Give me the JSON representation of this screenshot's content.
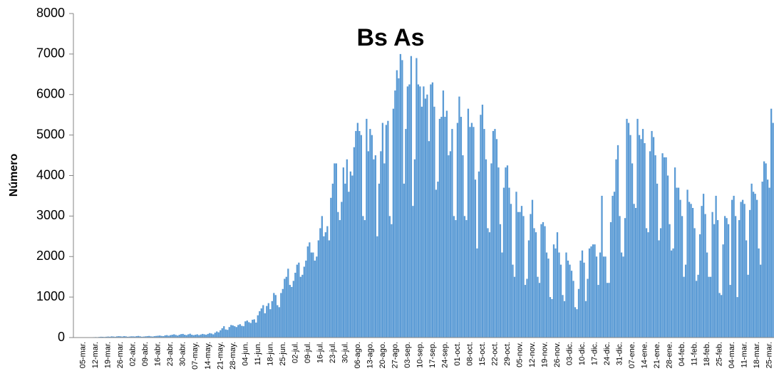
{
  "chart_data": {
    "type": "bar",
    "title": "Bs As",
    "y_label": "Número",
    "color": "#5b9bd5",
    "grid": false,
    "ylim": [
      0,
      8000
    ],
    "yticks": [
      0,
      1000,
      2000,
      3000,
      4000,
      5000,
      6000,
      7000,
      8000
    ],
    "categories": [
      null,
      null,
      null,
      null,
      null,
      "05-mar.",
      null,
      null,
      null,
      null,
      null,
      null,
      "12-mar.",
      null,
      null,
      null,
      null,
      null,
      null,
      "19-mar.",
      null,
      null,
      null,
      null,
      null,
      null,
      "26-mar.",
      null,
      null,
      null,
      null,
      null,
      null,
      "02-abr.",
      null,
      null,
      null,
      null,
      null,
      null,
      "09-abr.",
      null,
      null,
      null,
      null,
      null,
      null,
      "16-abr.",
      null,
      null,
      null,
      null,
      null,
      null,
      "23-abr.",
      null,
      null,
      null,
      null,
      null,
      null,
      "30-abr.",
      null,
      null,
      null,
      null,
      null,
      null,
      "07-may.",
      null,
      null,
      null,
      null,
      null,
      null,
      "14-may.",
      null,
      null,
      null,
      null,
      null,
      null,
      "21-may.",
      null,
      null,
      null,
      null,
      null,
      null,
      "28-may.",
      null,
      null,
      null,
      null,
      null,
      null,
      "04-jun.",
      null,
      null,
      null,
      null,
      null,
      null,
      "11-jun.",
      null,
      null,
      null,
      null,
      null,
      null,
      "18-jun.",
      null,
      null,
      null,
      null,
      null,
      null,
      "25-jun.",
      null,
      null,
      null,
      null,
      null,
      null,
      "02-jul.",
      null,
      null,
      null,
      null,
      null,
      null,
      "09-jul.",
      null,
      null,
      null,
      null,
      null,
      null,
      "16-jul.",
      null,
      null,
      null,
      null,
      null,
      null,
      "23-jul.",
      null,
      null,
      null,
      null,
      null,
      null,
      "30-jul.",
      null,
      null,
      null,
      null,
      null,
      null,
      "06-ago.",
      null,
      null,
      null,
      null,
      null,
      null,
      "13-ago.",
      null,
      null,
      null,
      null,
      null,
      null,
      "20-ago.",
      null,
      null,
      null,
      null,
      null,
      null,
      "27-ago.",
      null,
      null,
      null,
      null,
      null,
      null,
      "03-sep.",
      null,
      null,
      null,
      null,
      null,
      null,
      "10-sep.",
      null,
      null,
      null,
      null,
      null,
      null,
      "17-sep.",
      null,
      null,
      null,
      null,
      null,
      null,
      "24-sep.",
      null,
      null,
      null,
      null,
      null,
      null,
      "01-oct.",
      null,
      null,
      null,
      null,
      null,
      null,
      "08-oct.",
      null,
      null,
      null,
      null,
      null,
      null,
      "15-oct.",
      null,
      null,
      null,
      null,
      null,
      null,
      "22-oct.",
      null,
      null,
      null,
      null,
      null,
      null,
      "29-oct.",
      null,
      null,
      null,
      null,
      null,
      null,
      "05-nov.",
      null,
      null,
      null,
      null,
      null,
      null,
      "12-nov.",
      null,
      null,
      null,
      null,
      null,
      null,
      "19-nov.",
      null,
      null,
      null,
      null,
      null,
      null,
      "26-nov.",
      null,
      null,
      null,
      null,
      null,
      null,
      "03-dic.",
      null,
      null,
      null,
      null,
      null,
      null,
      "10-dic.",
      null,
      null,
      null,
      null,
      null,
      null,
      "17-dic.",
      null,
      null,
      null,
      null,
      null,
      null,
      "24-dic.",
      null,
      null,
      null,
      null,
      null,
      null,
      "31-dic.",
      null,
      null,
      null,
      null,
      null,
      null,
      "07-ene.",
      null,
      null,
      null,
      null,
      null,
      null,
      "14-ene.",
      null,
      null,
      null,
      null,
      null,
      null,
      "21-ene.",
      null,
      null,
      null,
      null,
      null,
      null,
      "28-ene.",
      null,
      null,
      null,
      null,
      null,
      null,
      "04-feb.",
      null,
      null,
      null,
      null,
      null,
      null,
      "11-feb.",
      null,
      null,
      null,
      null,
      null,
      null,
      "18-feb.",
      null,
      null,
      null,
      null,
      null,
      null,
      "25-feb.",
      null,
      null,
      null,
      null,
      null,
      null,
      "04-mar.",
      null,
      null,
      null,
      null,
      null,
      null,
      "11-mar.",
      null,
      null,
      null,
      null,
      null,
      null,
      "18-mar.",
      null,
      null,
      null,
      null,
      null,
      null,
      "25-mar.",
      null,
      null
    ],
    "values": [
      0,
      0,
      0,
      0,
      0,
      1,
      0,
      2,
      3,
      5,
      8,
      10,
      12,
      10,
      15,
      20,
      18,
      15,
      20,
      25,
      20,
      30,
      25,
      20,
      30,
      35,
      30,
      25,
      35,
      30,
      20,
      25,
      30,
      30,
      25,
      35,
      40,
      30,
      20,
      25,
      30,
      35,
      40,
      30,
      25,
      35,
      40,
      45,
      50,
      40,
      35,
      55,
      60,
      45,
      60,
      70,
      80,
      65,
      50,
      70,
      85,
      90,
      70,
      60,
      80,
      95,
      70,
      60,
      70,
      80,
      60,
      75,
      90,
      80,
      70,
      90,
      110,
      100,
      80,
      120,
      150,
      130,
      180,
      230,
      280,
      200,
      190,
      260,
      310,
      300,
      280,
      260,
      310,
      330,
      290,
      280,
      400,
      420,
      380,
      360,
      440,
      450,
      370,
      550,
      650,
      720,
      800,
      600,
      780,
      850,
      700,
      900,
      1100,
      1050,
      800,
      750,
      1100,
      1200,
      1450,
      1500,
      1700,
      1300,
      1250,
      1400,
      1600,
      1800,
      1850,
      1500,
      1550,
      1750,
      1900,
      2250,
      2350,
      2100,
      2100,
      1900,
      2000,
      2400,
      2700,
      3000,
      2500,
      2600,
      2750,
      2400,
      3450,
      3800,
      4300,
      4300,
      3100,
      2900,
      3350,
      4200,
      3800,
      4400,
      3600,
      4100,
      4000,
      4700,
      5100,
      5300,
      5100,
      5000,
      3000,
      2900,
      5400,
      4600,
      5150,
      5000,
      4400,
      4500,
      2500,
      3800,
      4600,
      5300,
      4300,
      5250,
      5350,
      3000,
      2800,
      5650,
      6100,
      6600,
      6400,
      7000,
      6850,
      3800,
      5150,
      6200,
      6250,
      6950,
      3250,
      4400,
      6900,
      6250,
      6200,
      5700,
      6200,
      5900,
      6000,
      4850,
      6250,
      6300,
      5700,
      3650,
      3850,
      5400,
      5450,
      6100,
      5450,
      5600,
      4500,
      4600,
      5150,
      3000,
      2900,
      5300,
      5950,
      5450,
      4500,
      3000,
      2900,
      5650,
      5200,
      5300,
      5200,
      3900,
      2200,
      4100,
      5500,
      5750,
      5150,
      4400,
      2700,
      2600,
      4300,
      5100,
      5150,
      4900,
      4200,
      2800,
      2100,
      3700,
      4200,
      4250,
      3700,
      3300,
      1800,
      1500,
      3600,
      3100,
      3100,
      3250,
      3000,
      1300,
      1450,
      2400,
      3050,
      3400,
      2700,
      2600,
      1500,
      1350,
      2800,
      2850,
      2750,
      2100,
      1950,
      1000,
      950,
      2300,
      2200,
      2600,
      2100,
      1800,
      1050,
      900,
      2100,
      1900,
      1800,
      1650,
      1400,
      750,
      700,
      1200,
      1900,
      2150,
      1850,
      900,
      1450,
      2200,
      2250,
      2300,
      2300,
      2000,
      1300,
      2100,
      3500,
      2000,
      2000,
      1350,
      1350,
      2850,
      3500,
      3600,
      4400,
      4750,
      3000,
      2100,
      2000,
      2950,
      5400,
      5300,
      5000,
      4300,
      3300,
      3200,
      5400,
      5000,
      4900,
      5150,
      4800,
      2700,
      2600,
      4600,
      5100,
      4950,
      4500,
      3800,
      2400,
      2700,
      4550,
      4450,
      4450,
      4000,
      2800,
      2150,
      2200,
      4200,
      3700,
      3700,
      3400,
      3000,
      1500,
      1800,
      3650,
      3350,
      3300,
      3200,
      2700,
      1400,
      1550,
      2550,
      3250,
      3550,
      3050,
      2100,
      1500,
      1500,
      3100,
      2800,
      3500,
      2900,
      1100,
      1050,
      2300,
      3000,
      2950,
      2800,
      1300,
      3400,
      3500,
      3000,
      1000,
      2900,
      3350,
      3400,
      3300,
      2400,
      1550,
      3150,
      3800,
      3600,
      3550,
      3400,
      2200,
      1800,
      3850,
      4350,
      4300,
      3900,
      3700,
      5650,
      5300
    ]
  }
}
